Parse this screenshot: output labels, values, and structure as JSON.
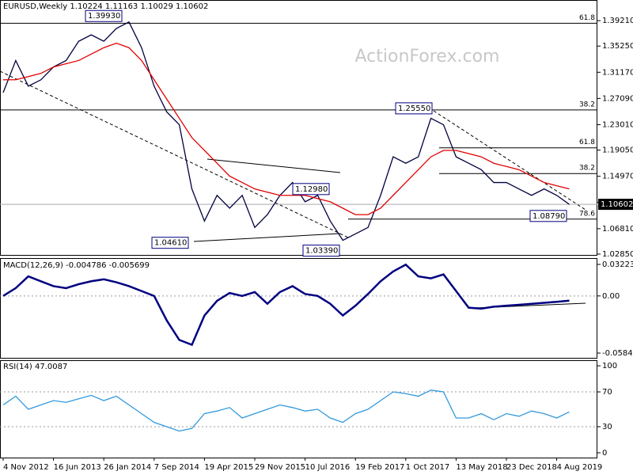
{
  "chart_data": [
    {
      "type": "line",
      "title": "EURUSD,Weekly 1.10224 1.11163 1.10029 1.10602",
      "watermark": "ActionForex.com",
      "ylim": [
        1.026,
        1.407
      ],
      "yticks": [
        {
          "value": 1.3921,
          "label": "1.39210"
        },
        {
          "value": 1.3525,
          "label": "1.35250"
        },
        {
          "value": 1.3117,
          "label": "1.31170"
        },
        {
          "value": 1.2709,
          "label": "1.27090"
        },
        {
          "value": 1.2301,
          "label": "1.23010"
        },
        {
          "value": 1.1905,
          "label": "1.19050"
        },
        {
          "value": 1.1497,
          "label": "1.14970"
        },
        {
          "value": 1.1089,
          "label": "1.10890"
        },
        {
          "value": 1.0681,
          "label": "1.06810"
        },
        {
          "value": 1.0285,
          "label": "1.02850"
        }
      ],
      "last_price": {
        "value": 1.10602,
        "label": "1.10602"
      },
      "series": [
        {
          "color": "#000040",
          "values": [
            1.28,
            1.33,
            1.29,
            1.3,
            1.32,
            1.33,
            1.36,
            1.37,
            1.36,
            1.38,
            1.39,
            1.35,
            1.29,
            1.25,
            1.23,
            1.13,
            1.08,
            1.12,
            1.1,
            1.12,
            1.07,
            1.09,
            1.12,
            1.14,
            1.11,
            1.12,
            1.08,
            1.05,
            1.06,
            1.07,
            1.12,
            1.18,
            1.17,
            1.18,
            1.24,
            1.23,
            1.18,
            1.17,
            1.16,
            1.14,
            1.14,
            1.13,
            1.12,
            1.13,
            1.12,
            1.10602
          ]
        },
        {
          "color": "#e00000",
          "values": [
            1.3,
            1.3,
            1.305,
            1.31,
            1.32,
            1.325,
            1.33,
            1.34,
            1.35,
            1.357,
            1.35,
            1.33,
            1.3,
            1.27,
            1.24,
            1.21,
            1.19,
            1.17,
            1.15,
            1.14,
            1.13,
            1.125,
            1.12,
            1.12,
            1.12,
            1.115,
            1.11,
            1.1,
            1.09,
            1.09,
            1.1,
            1.12,
            1.14,
            1.16,
            1.18,
            1.19,
            1.19,
            1.185,
            1.18,
            1.17,
            1.165,
            1.16,
            1.15,
            1.14,
            1.135,
            1.13
          ]
        }
      ],
      "annotations": [
        {
          "label": "1.39930",
          "value": 1.3993
        },
        {
          "label": "1.25550",
          "value": 1.2555
        },
        {
          "label": "1.12980",
          "value": 1.1298
        },
        {
          "label": "1.04610",
          "value": 1.0461
        },
        {
          "label": "1.03390",
          "value": 1.0339
        },
        {
          "label": "1.08790",
          "value": 1.0879
        }
      ],
      "fib_levels": [
        {
          "label": "61.8",
          "value": 1.388
        },
        {
          "label": "38.2",
          "value": 1.253
        },
        {
          "label": "61.8",
          "value": 1.194
        },
        {
          "label": "38.2",
          "value": 1.154
        },
        {
          "label": "78.6",
          "value": 1.083
        }
      ]
    },
    {
      "type": "line",
      "title": "MACD(12,26,9) -0.004786 -0.005699",
      "ylim": [
        -0.0641,
        0.0379
      ],
      "yticks": [
        0.032235,
        {
          "value": 0,
          "label": "0.00"
        },
        -0.058434
      ],
      "series": [
        {
          "color": "#000080",
          "values": [
            0.0,
            0.008,
            0.02,
            0.015,
            0.01,
            0.008,
            0.012,
            0.015,
            0.017,
            0.014,
            0.01,
            0.005,
            0.0,
            -0.025,
            -0.045,
            -0.05,
            -0.02,
            -0.005,
            0.003,
            0.0,
            0.004,
            -0.008,
            0.004,
            0.01,
            0.002,
            0.0,
            -0.008,
            -0.02,
            -0.01,
            0.002,
            0.015,
            0.025,
            0.032,
            0.02,
            0.018,
            0.022,
            0.005,
            -0.012,
            -0.013,
            -0.011,
            -0.01,
            -0.009,
            -0.008,
            -0.007,
            -0.006,
            -0.004786
          ]
        }
      ]
    },
    {
      "type": "line",
      "title": "RSI(14) 47.0087",
      "ylim": [
        -5.5,
        105.5
      ],
      "yticks": [
        100,
        70,
        30,
        0
      ],
      "categories": [
        "4 Nov 2012",
        null,
        null,
        null,
        "16 Jun 2013",
        null,
        null,
        null,
        "26 Jan 2014",
        null,
        null,
        null,
        "7 Sep 2014",
        null,
        null,
        null,
        "19 Apr 2015",
        null,
        null,
        null,
        "29 Nov 2015",
        null,
        null,
        null,
        "10 Jul 2016",
        null,
        null,
        null,
        "19 Feb 2017",
        null,
        null,
        null,
        "1 Oct 2017",
        null,
        null,
        null,
        "13 May 2018",
        null,
        null,
        null,
        "23 Dec 2018",
        null,
        null,
        null,
        "4 Aug 2019",
        null
      ],
      "series": [
        {
          "color": "#3399dd",
          "values": [
            55,
            65,
            50,
            55,
            60,
            58,
            62,
            66,
            60,
            65,
            55,
            45,
            35,
            30,
            25,
            28,
            45,
            48,
            52,
            40,
            45,
            50,
            55,
            52,
            48,
            50,
            40,
            35,
            45,
            50,
            60,
            70,
            68,
            65,
            72,
            70,
            40,
            40,
            45,
            38,
            45,
            42,
            48,
            45,
            40,
            47.0087
          ]
        }
      ]
    }
  ]
}
